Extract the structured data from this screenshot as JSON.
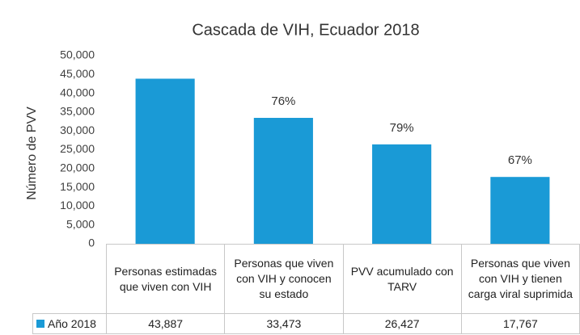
{
  "chart_data": {
    "type": "bar",
    "title": "Cascada de VIH, Ecuador 2018",
    "ylabel": "Número de PVV",
    "categories": [
      "Personas estimadas que viven con VIH",
      "Personas que viven con VIH y conocen su estado",
      "PVV acumulado con TARV",
      "Personas que viven con VIH y tienen carga viral suprimida"
    ],
    "series": [
      {
        "name": "Año 2018",
        "color": "#1a9ad6",
        "values": [
          43887,
          33473,
          26427,
          17767
        ],
        "value_labels": [
          "43,887",
          "33,473",
          "26,427",
          "17,767"
        ]
      }
    ],
    "annotations": [
      null,
      "76%",
      "79%",
      "67%"
    ],
    "ylim": [
      0,
      50000
    ],
    "yticks": [
      0,
      {
        "value": 5000,
        "label": "5,000"
      },
      {
        "value": 10000,
        "label": "10,000"
      },
      {
        "value": 15000,
        "label": "15,000"
      },
      {
        "value": 20000,
        "label": "20,000"
      },
      {
        "value": 25000,
        "label": "25,000"
      },
      {
        "value": 30000,
        "label": "30,000"
      },
      {
        "value": 35000,
        "label": "35,000"
      },
      {
        "value": 40000,
        "label": "40,000"
      },
      {
        "value": 45000,
        "label": "45,000"
      },
      {
        "value": 50000,
        "label": "50,000"
      }
    ],
    "grid": false
  }
}
